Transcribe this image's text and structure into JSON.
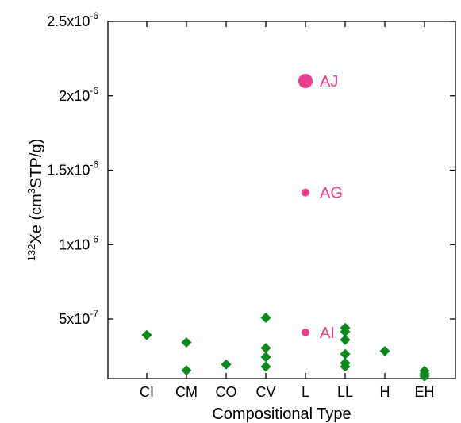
{
  "chart_data": {
    "type": "scatter",
    "xlabel": "Compositional Type",
    "ylabel": {
      "superscript_prefix": "132",
      "prefix": "Xe (cm",
      "superscript_mid": "3",
      "suffix": "STP/g)"
    },
    "categories": [
      "CI",
      "CM",
      "CO",
      "CV",
      "L",
      "LL",
      "H",
      "EH"
    ],
    "ylim": [
      1e-07,
      2.5e-06
    ],
    "yticks": [
      {
        "value": 5e-07,
        "mantissa": "5x10",
        "exponent": "-7"
      },
      {
        "value": 1e-06,
        "mantissa": "1x10",
        "exponent": "-6"
      },
      {
        "value": 1.5e-06,
        "mantissa": "1.5x10",
        "exponent": "-6"
      },
      {
        "value": 2e-06,
        "mantissa": "2x10",
        "exponent": "-6"
      },
      {
        "value": 2.5e-06,
        "mantissa": "2.5x10",
        "exponent": "-6"
      }
    ],
    "grid": false,
    "series": [
      {
        "marker": "diamond",
        "color": "#0a8a1a",
        "points": [
          {
            "x": "CI",
            "y": 3.93e-07
          },
          {
            "x": "CM",
            "y": 3.43e-07
          },
          {
            "x": "CM",
            "y": 1.55e-07
          },
          {
            "x": "CO",
            "y": 1.95e-07
          },
          {
            "x": "CV",
            "y": 5.08e-07
          },
          {
            "x": "CV",
            "y": 3.05e-07
          },
          {
            "x": "CV",
            "y": 2.45e-07
          },
          {
            "x": "CV",
            "y": 1.8e-07
          },
          {
            "x": "LL",
            "y": 4.4e-07
          },
          {
            "x": "LL",
            "y": 4.15e-07
          },
          {
            "x": "LL",
            "y": 3.6e-07
          },
          {
            "x": "LL",
            "y": 2.65e-07
          },
          {
            "x": "LL",
            "y": 2.05e-07
          },
          {
            "x": "LL",
            "y": 1.8e-07
          },
          {
            "x": "H",
            "y": 2.85e-07
          },
          {
            "x": "EH",
            "y": 1.52e-07
          },
          {
            "x": "EH",
            "y": 1.33e-07
          },
          {
            "x": "EH",
            "y": 1.15e-07
          }
        ]
      },
      {
        "marker": "circle",
        "color": "#ec3d8c",
        "points": [
          {
            "x": "L",
            "y": 2.1e-06,
            "label": "AJ",
            "size": "large"
          },
          {
            "x": "L",
            "y": 1.35e-06,
            "label": "AG",
            "size": "small"
          },
          {
            "x": "L",
            "y": 4.1e-07,
            "label": "AI",
            "size": "small"
          }
        ]
      }
    ]
  }
}
